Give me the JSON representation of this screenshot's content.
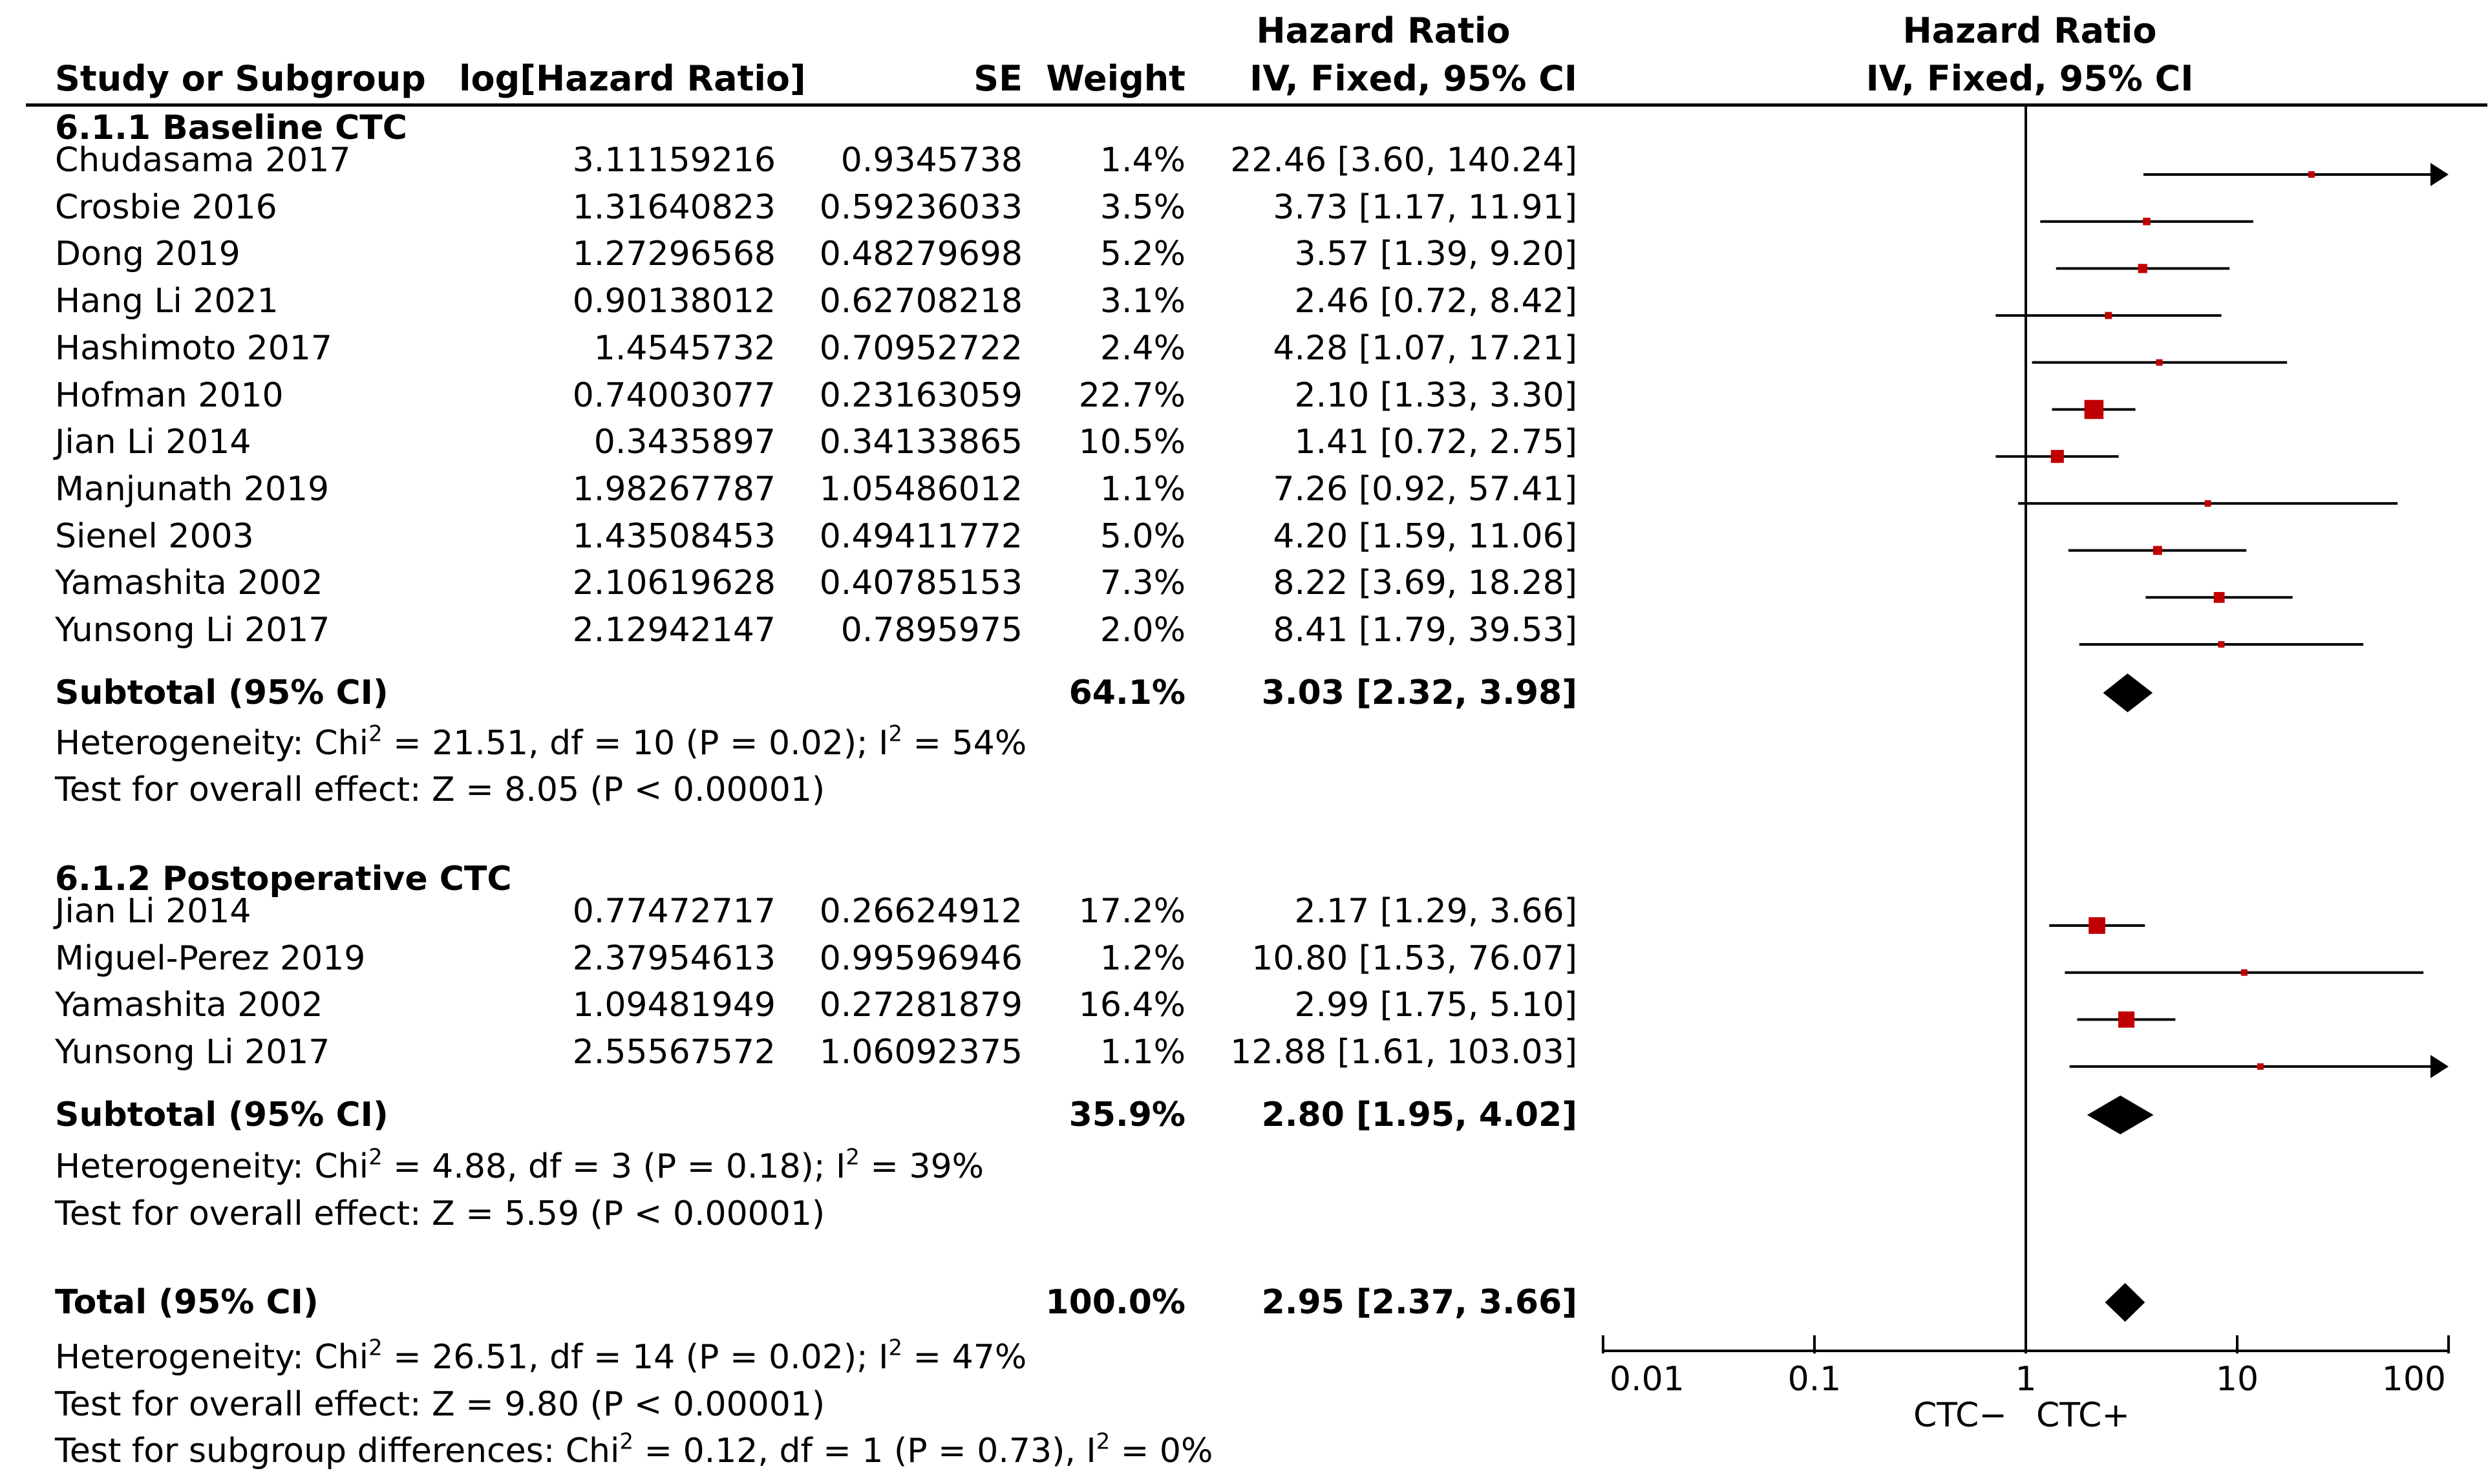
{
  "headers": {
    "study": "Study or Subgroup",
    "loghr": "log[Hazard Ratio]",
    "se": "SE",
    "weight": "Weight",
    "hr_line1": "Hazard Ratio",
    "hr_line2": "IV, Fixed, 95% CI",
    "plot_line1": "Hazard Ratio",
    "plot_line2": "IV, Fixed, 95% CI"
  },
  "groups": [
    {
      "title": "6.1.1 Baseline CTC",
      "studies": [
        {
          "name": "Chudasama 2017",
          "loghr": "3.11159216",
          "se": "0.9345738",
          "weight": "1.4%",
          "ci": "22.46 [3.60, 140.24]"
        },
        {
          "name": "Crosbie 2016",
          "loghr": "1.31640823",
          "se": "0.59236033",
          "weight": "3.5%",
          "ci": "3.73 [1.17, 11.91]"
        },
        {
          "name": "Dong 2019",
          "loghr": "1.27296568",
          "se": "0.48279698",
          "weight": "5.2%",
          "ci": "3.57 [1.39, 9.20]"
        },
        {
          "name": "Hang Li 2021",
          "loghr": "0.90138012",
          "se": "0.62708218",
          "weight": "3.1%",
          "ci": "2.46 [0.72, 8.42]"
        },
        {
          "name": "Hashimoto 2017",
          "loghr": "1.4545732",
          "se": "0.70952722",
          "weight": "2.4%",
          "ci": "4.28 [1.07, 17.21]"
        },
        {
          "name": "Hofman 2010",
          "loghr": "0.74003077",
          "se": "0.23163059",
          "weight": "22.7%",
          "ci": "2.10 [1.33, 3.30]"
        },
        {
          "name": "Jian Li 2014",
          "loghr": "0.3435897",
          "se": "0.34133865",
          "weight": "10.5%",
          "ci": "1.41 [0.72, 2.75]"
        },
        {
          "name": "Manjunath 2019",
          "loghr": "1.98267787",
          "se": "1.05486012",
          "weight": "1.1%",
          "ci": "7.26 [0.92, 57.41]"
        },
        {
          "name": "Sienel 2003",
          "loghr": "1.43508453",
          "se": "0.49411772",
          "weight": "5.0%",
          "ci": "4.20 [1.59, 11.06]"
        },
        {
          "name": "Yamashita 2002",
          "loghr": "2.10619628",
          "se": "0.40785153",
          "weight": "7.3%",
          "ci": "8.22 [3.69, 18.28]"
        },
        {
          "name": "Yunsong Li 2017",
          "loghr": "2.12942147",
          "se": "0.7895975",
          "weight": "2.0%",
          "ci": "8.41 [1.79, 39.53]"
        }
      ],
      "subtotal": {
        "label": "Subtotal (95% CI)",
        "weight": "64.1%",
        "ci": "3.03 [2.32, 3.98]"
      },
      "heterogeneity": {
        "prefix": "Heterogeneity: Chi",
        "sup1": "2",
        "mid": " = 21.51, df = 10 (P = 0.02); I",
        "sup2": "2",
        "suffix": " = 54%"
      },
      "overall": "Test for overall effect: Z = 8.05 (P < 0.00001)"
    },
    {
      "title": "6.1.2 Postoperative CTC",
      "studies": [
        {
          "name": "Jian Li 2014",
          "loghr": "0.77472717",
          "se": "0.26624912",
          "weight": "17.2%",
          "ci": "2.17 [1.29, 3.66]"
        },
        {
          "name": "Miguel-Perez 2019",
          "loghr": "2.37954613",
          "se": "0.99596946",
          "weight": "1.2%",
          "ci": "10.80 [1.53, 76.07]"
        },
        {
          "name": "Yamashita 2002",
          "loghr": "1.09481949",
          "se": "0.27281879",
          "weight": "16.4%",
          "ci": "2.99 [1.75, 5.10]"
        },
        {
          "name": "Yunsong Li 2017",
          "loghr": "2.55567572",
          "se": "1.06092375",
          "weight": "1.1%",
          "ci": "12.88 [1.61, 103.03]"
        }
      ],
      "subtotal": {
        "label": "Subtotal (95% CI)",
        "weight": "35.9%",
        "ci": "2.80 [1.95, 4.02]"
      },
      "heterogeneity": {
        "prefix": "Heterogeneity: Chi",
        "sup1": "2",
        "mid": " = 4.88, df = 3 (P = 0.18); I",
        "sup2": "2",
        "suffix": " = 39%"
      },
      "overall": "Test for overall effect: Z = 5.59 (P < 0.00001)"
    }
  ],
  "total": {
    "label": "Total (95% CI)",
    "weight": "100.0%",
    "ci": "2.95 [2.37, 3.66]",
    "heterogeneity": {
      "prefix": "Heterogeneity: Chi",
      "sup1": "2",
      "mid": " = 26.51, df = 14 (P = 0.02); I",
      "sup2": "2",
      "suffix": " = 47%"
    },
    "overall": "Test for overall effect: Z = 9.80 (P < 0.00001)",
    "subgroup": {
      "prefix": "Test for subgroup differences: Chi",
      "sup1": "2",
      "mid": " = 0.12, df = 1 (P = 0.73), I",
      "sup2": "2",
      "suffix": " = 0%"
    }
  },
  "chart_data": {
    "type": "forest",
    "scale": "log",
    "axis_ticks": [
      "0.01",
      "0.1",
      "1",
      "10",
      "100"
    ],
    "axis_tick_values": [
      0.01,
      0.1,
      1,
      10,
      100
    ],
    "xlim": [
      0.01,
      100
    ],
    "favours_left": "CTC−",
    "favours_right": "CTC+",
    "marker_color": "#c00000",
    "groups": [
      {
        "name": "6.1.1 Baseline CTC",
        "studies": [
          {
            "hr": 22.46,
            "lo": 3.6,
            "hi": 140.24,
            "weight": 1.4
          },
          {
            "hr": 3.73,
            "lo": 1.17,
            "hi": 11.91,
            "weight": 3.5
          },
          {
            "hr": 3.57,
            "lo": 1.39,
            "hi": 9.2,
            "weight": 5.2
          },
          {
            "hr": 2.46,
            "lo": 0.72,
            "hi": 8.42,
            "weight": 3.1
          },
          {
            "hr": 4.28,
            "lo": 1.07,
            "hi": 17.21,
            "weight": 2.4
          },
          {
            "hr": 2.1,
            "lo": 1.33,
            "hi": 3.3,
            "weight": 22.7
          },
          {
            "hr": 1.41,
            "lo": 0.72,
            "hi": 2.75,
            "weight": 10.5
          },
          {
            "hr": 7.26,
            "lo": 0.92,
            "hi": 57.41,
            "weight": 1.1
          },
          {
            "hr": 4.2,
            "lo": 1.59,
            "hi": 11.06,
            "weight": 5.0
          },
          {
            "hr": 8.22,
            "lo": 3.69,
            "hi": 18.28,
            "weight": 7.3
          },
          {
            "hr": 8.41,
            "lo": 1.79,
            "hi": 39.53,
            "weight": 2.0
          }
        ],
        "subtotal": {
          "hr": 3.03,
          "lo": 2.32,
          "hi": 3.98
        }
      },
      {
        "name": "6.1.2 Postoperative CTC",
        "studies": [
          {
            "hr": 2.17,
            "lo": 1.29,
            "hi": 3.66,
            "weight": 17.2
          },
          {
            "hr": 10.8,
            "lo": 1.53,
            "hi": 76.07,
            "weight": 1.2
          },
          {
            "hr": 2.99,
            "lo": 1.75,
            "hi": 5.1,
            "weight": 16.4
          },
          {
            "hr": 12.88,
            "lo": 1.61,
            "hi": 103.03,
            "weight": 1.1
          }
        ],
        "subtotal": {
          "hr": 2.8,
          "lo": 1.95,
          "hi": 4.02
        }
      }
    ],
    "total": {
      "hr": 2.95,
      "lo": 2.37,
      "hi": 3.66
    }
  }
}
